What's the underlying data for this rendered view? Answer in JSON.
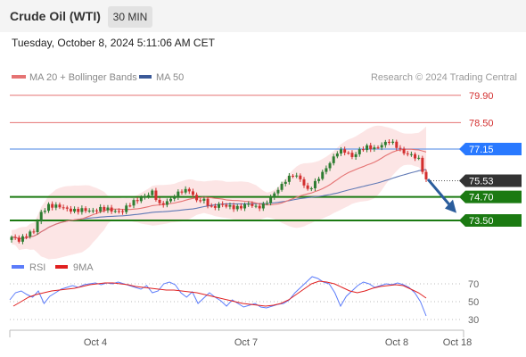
{
  "header": {
    "instrument": "Crude Oil (WTI)",
    "timeframe": "30 MIN",
    "datetime": "Tuesday, October 8, 2024 5:11:06 AM CET"
  },
  "legend": {
    "ma20_label": "MA 20 + Bollinger Bands",
    "ma50_label": "MA 50",
    "credit": "Research © 2024 Trading Central"
  },
  "colors": {
    "up": "#2e7d32",
    "down": "#d32f2f",
    "ma20": "#e57373",
    "ma50": "#6079b5",
    "band": "#fbe1e1",
    "resistance": "#e57373",
    "pivot": "#2979ff",
    "support": "#1b7a12",
    "last": "#333333",
    "rsi": "#5c7cfa",
    "rsi_ma": "#e02020"
  },
  "chart_data": [
    {
      "type": "candlestick",
      "x_labels": [
        "Oct 4",
        "Oct 7",
        "Oct 8",
        "Oct 18"
      ],
      "ylim": [
        71.9,
        80.3
      ],
      "levels": [
        {
          "value": 79.9,
          "label": "79.90",
          "kind": "resistance"
        },
        {
          "value": 78.5,
          "label": "78.50",
          "kind": "resistance"
        },
        {
          "value": 77.15,
          "label": "77.15",
          "kind": "pivot"
        },
        {
          "value": 75.53,
          "label": "75.53",
          "kind": "last"
        },
        {
          "value": 74.7,
          "label": "74.70",
          "kind": "support"
        },
        {
          "value": 73.5,
          "label": "73.50",
          "kind": "support"
        }
      ],
      "series": [
        {
          "name": "MA 20 + Bollinger Bands"
        },
        {
          "name": "MA 50"
        }
      ],
      "forecast": {
        "from": 75.6,
        "to": 74.2,
        "direction": "down"
      },
      "anchors": [
        [
          0,
          72.6
        ],
        [
          2,
          72.5
        ],
        [
          4,
          72.8
        ],
        [
          6,
          72.9
        ],
        [
          8,
          73.9
        ],
        [
          10,
          74.3
        ],
        [
          12,
          74.2
        ],
        [
          15,
          74.1
        ],
        [
          18,
          74.0
        ],
        [
          21,
          74.0
        ],
        [
          24,
          74.1
        ],
        [
          27,
          74.0
        ],
        [
          30,
          74.0
        ],
        [
          32,
          74.3
        ],
        [
          35,
          74.7
        ],
        [
          38,
          74.9
        ],
        [
          40,
          74.3
        ],
        [
          42,
          74.5
        ],
        [
          44,
          74.7
        ],
        [
          46,
          75.0
        ],
        [
          48,
          75.1
        ],
        [
          50,
          74.5
        ],
        [
          52,
          74.5
        ],
        [
          54,
          74.2
        ],
        [
          56,
          74.3
        ],
        [
          58,
          74.2
        ],
        [
          60,
          74.2
        ],
        [
          62,
          74.2
        ],
        [
          64,
          74.3
        ],
        [
          66,
          74.2
        ],
        [
          68,
          74.3
        ],
        [
          70,
          74.6
        ],
        [
          72,
          75.1
        ],
        [
          74,
          75.6
        ],
        [
          76,
          75.8
        ],
        [
          78,
          75.6
        ],
        [
          80,
          75.1
        ],
        [
          82,
          75.4
        ],
        [
          84,
          75.9
        ],
        [
          86,
          76.5
        ],
        [
          88,
          77.0
        ],
        [
          90,
          77.0
        ],
        [
          92,
          76.8
        ],
        [
          94,
          77.1
        ],
        [
          96,
          77.2
        ],
        [
          98,
          77.2
        ],
        [
          100,
          77.4
        ],
        [
          102,
          77.5
        ],
        [
          104,
          77.3
        ],
        [
          106,
          77.0
        ],
        [
          108,
          76.8
        ],
        [
          110,
          76.6
        ],
        [
          112,
          75.6
        ]
      ]
    },
    {
      "type": "line",
      "x_labels": [
        "Oct 4",
        "Oct 7",
        "Oct 8",
        "Oct 18"
      ],
      "ylim": [
        25,
        75
      ],
      "yticks": [
        30,
        50,
        70
      ],
      "series": [
        {
          "name": "RSI",
          "values": [
            52,
            60,
            62,
            58,
            55,
            62,
            48,
            56,
            60,
            64,
            66,
            68,
            66,
            69,
            70,
            71,
            69,
            71,
            70,
            72,
            70,
            68,
            66,
            64,
            68,
            60,
            62,
            70,
            72,
            69,
            60,
            55,
            61,
            48,
            54,
            60,
            55,
            51,
            45,
            52,
            48,
            44,
            46,
            48,
            44,
            43,
            45,
            47,
            48,
            52,
            60,
            66,
            72,
            78,
            76,
            72,
            70,
            60,
            45,
            56,
            62,
            68,
            72,
            70,
            66,
            68,
            70,
            69,
            71,
            69,
            66,
            60,
            50,
            34
          ]
        },
        {
          "name": "9MA",
          "values": [
            45,
            50,
            55,
            58,
            60,
            62,
            63,
            64,
            65,
            67,
            69,
            70,
            71,
            71,
            70,
            69,
            67,
            66,
            65,
            64,
            63,
            63,
            62,
            61,
            60,
            58,
            56,
            54,
            52,
            50,
            48,
            47,
            46,
            45,
            46,
            48,
            52,
            58,
            64,
            70,
            73,
            72,
            70,
            66,
            62,
            60,
            62,
            65,
            67,
            68,
            69,
            68,
            64,
            60,
            54
          ]
        }
      ]
    }
  ]
}
